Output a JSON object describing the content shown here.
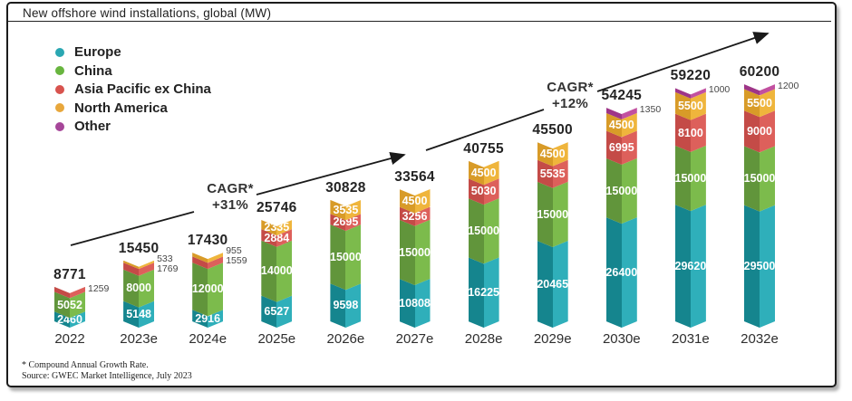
{
  "title": "New offshore wind installations, global (MW)",
  "legend": [
    {
      "label": "Europe",
      "color": "#2AA7B2"
    },
    {
      "label": "China",
      "color": "#68B53F"
    },
    {
      "label": "Asia Pacific ex China",
      "color": "#D8534E"
    },
    {
      "label": "North America",
      "color": "#E8A73C"
    },
    {
      "label": "Other",
      "color": "#A64699"
    }
  ],
  "chart_data": {
    "type": "bar",
    "subtype": "stacked-3d-chevron",
    "title": "New offshore wind installations, global (MW)",
    "unit": "MW",
    "grid": false,
    "legend_position": "top-left",
    "ylim": [
      0,
      60200
    ],
    "categories": [
      "2022",
      "2023e",
      "2024e",
      "2025e",
      "2026e",
      "2027e",
      "2028e",
      "2029e",
      "2030e",
      "2031e",
      "2032e"
    ],
    "series": [
      {
        "name": "Europe",
        "color_dark": "#15858E",
        "color_light": "#2FAFBA",
        "values": [
          2460,
          5148,
          2916,
          6527,
          9598,
          10808,
          16225,
          20465,
          26400,
          29620,
          29500
        ]
      },
      {
        "name": "China",
        "color_dark": "#61953B",
        "color_light": "#7CBB4C",
        "values": [
          5052,
          8000,
          12000,
          14000,
          15000,
          15000,
          15000,
          15000,
          15000,
          15000,
          15000
        ]
      },
      {
        "name": "Asia Pacific ex China",
        "color_dark": "#C44B47",
        "color_light": "#DD605B",
        "values": [
          1259,
          1769,
          1559,
          2884,
          2695,
          3256,
          5030,
          5535,
          6995,
          8100,
          9000
        ]
      },
      {
        "name": "North America",
        "color_dark": "#D89B28",
        "color_light": "#EFB53C",
        "values": [
          0,
          533,
          955,
          2335,
          3535,
          4500,
          4500,
          4500,
          4500,
          5500,
          5500
        ]
      },
      {
        "name": "Other",
        "color_dark": "#9E3588",
        "color_light": "#C250A0",
        "values": [
          0,
          0,
          0,
          0,
          0,
          0,
          0,
          0,
          1350,
          1000,
          1200
        ]
      }
    ],
    "totals": [
      8771,
      15450,
      17430,
      25746,
      30828,
      33564,
      40755,
      45500,
      54245,
      59220,
      60200
    ],
    "annotations": [
      {
        "line1": "CAGR*",
        "line2": "+31%"
      },
      {
        "line1": "CAGR*",
        "line2": "+12%"
      }
    ]
  },
  "footnotes": [
    "* Compound Annual Growth Rate.",
    "Source: GWEC Market Intelligence, July 2023"
  ]
}
